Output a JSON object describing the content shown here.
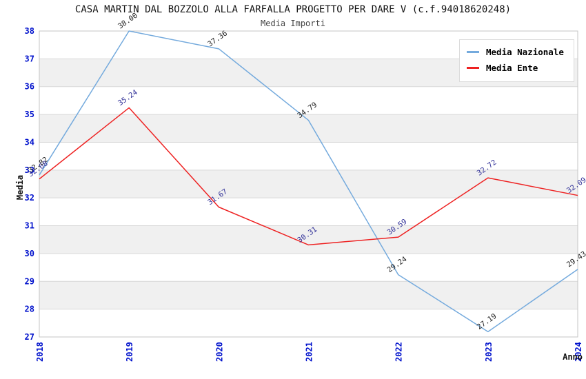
{
  "title": "CASA MARTIN DAL BOZZOLO ALLA FARFALLA PROGETTO PER DARE V (c.f.94018620248)",
  "subtitle": "Media Importi",
  "colors": {
    "tick_label": "#0011cc",
    "band_fill": "#f0f0f0",
    "grid_line": "#d8d8d8",
    "plot_border": "#c6c6c6",
    "title": "#111111",
    "subtitle": "#444444"
  },
  "chart_data": {
    "type": "line",
    "title": "CASA MARTIN DAL BOZZOLO ALLA FARFALLA PROGETTO PER DARE V (c.f.94018620248)",
    "subtitle": "Media Importi",
    "xlabel": "Anno",
    "ylabel": "Media",
    "x": [
      2018,
      2019,
      2020,
      2021,
      2022,
      2023,
      2024
    ],
    "ylim": [
      27,
      38
    ],
    "y_ticks": [
      27,
      28,
      29,
      30,
      31,
      32,
      33,
      34,
      35,
      36,
      37,
      38
    ],
    "grid": "horizontal integer gridlines with alternating white/grey bands",
    "legend_position": "top-right",
    "series": [
      {
        "name": "Media Nazionale",
        "color": "#74aadd",
        "label_color": "#222222",
        "values": [
          32.82,
          38.0,
          37.36,
          34.79,
          29.24,
          27.19,
          29.43
        ],
        "labels": [
          "32.82",
          "38.00",
          "37.36",
          "34.79",
          "29.24",
          "27.19",
          "29.43"
        ]
      },
      {
        "name": "Media Ente",
        "color": "#ee2222",
        "label_color": "#333399",
        "values": [
          32.68,
          35.24,
          31.67,
          30.31,
          30.59,
          32.72,
          32.09
        ],
        "labels": [
          "32.68",
          "35.24",
          "31.67",
          "30.31",
          "30.59",
          "32.72",
          "32.09"
        ]
      }
    ]
  }
}
